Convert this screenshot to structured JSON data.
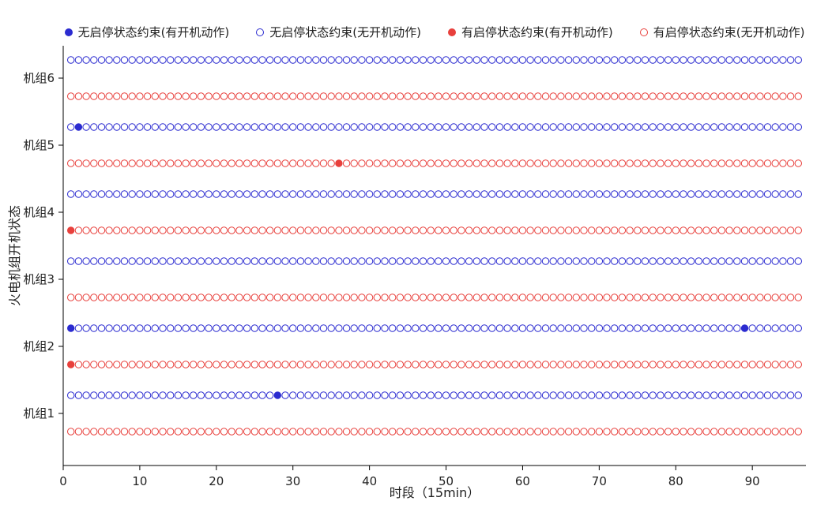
{
  "chart_data": {
    "type": "scatter",
    "title": "",
    "xlabel": "时段（15min）",
    "ylabel": "火电机组开机状态",
    "xlim": [
      0,
      97
    ],
    "xticks": [
      0,
      10,
      20,
      30,
      40,
      50,
      60,
      70,
      80,
      90
    ],
    "periods": 96,
    "units": [
      "机组1",
      "机组2",
      "机组3",
      "机组4",
      "机组5",
      "机组6"
    ],
    "series_colors": {
      "blue": "#2b2bd0",
      "red": "#e8403c"
    },
    "legend": [
      {
        "label": "无启停状态约束(有开机动作)",
        "color": "blue",
        "filled": true
      },
      {
        "label": "无启停状态约束(无开机动作)",
        "color": "blue",
        "filled": false
      },
      {
        "label": "有启停状态约束(有开机动作)",
        "color": "red",
        "filled": true
      },
      {
        "label": "有启停状态约束(无开机动作)",
        "color": "red",
        "filled": false
      }
    ],
    "rows_per_unit": [
      "blue",
      "red"
    ],
    "filled_points": {
      "unit1_blue": [
        28
      ],
      "unit1_red": [],
      "unit2_blue": [
        1,
        89
      ],
      "unit2_red": [
        1
      ],
      "unit3_blue": [],
      "unit3_red": [],
      "unit4_blue": [],
      "unit4_red": [
        1
      ],
      "unit5_blue": [
        2
      ],
      "unit5_red": [
        36
      ],
      "unit6_blue": [],
      "unit6_red": []
    },
    "grid": false,
    "legend_position": "top-center"
  }
}
